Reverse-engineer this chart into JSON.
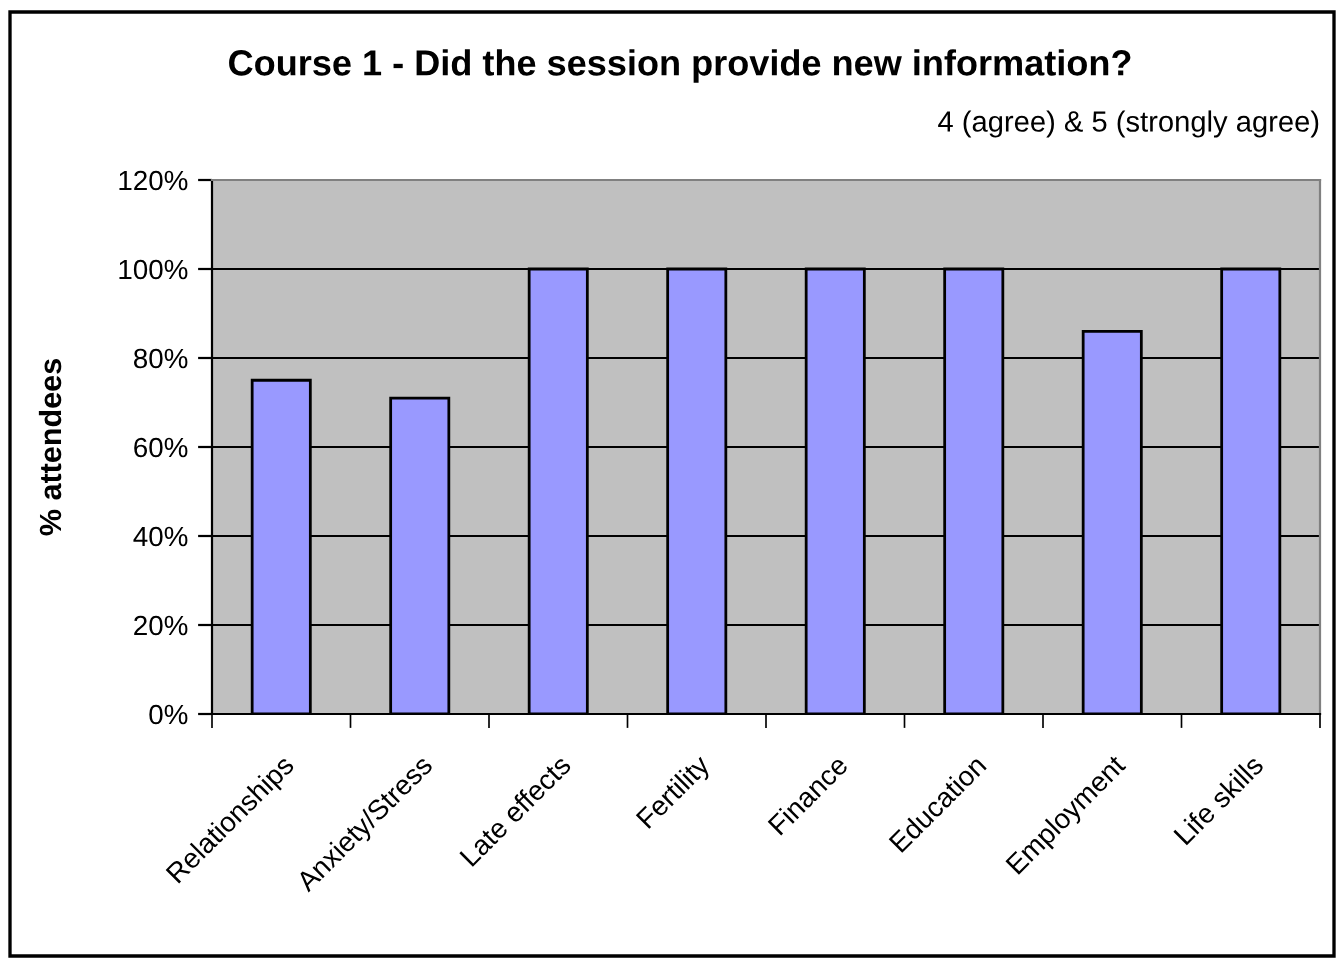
{
  "chart_data": {
    "type": "bar",
    "title": "Course 1 - Did the session provide new information?",
    "subtitle": "4 (agree) & 5 (strongly agree)",
    "ylabel": "% attendees",
    "categories": [
      "Relationships",
      "Anxiety/Stress",
      "Late effects",
      "Fertility",
      "Finance",
      "Education",
      "Employment",
      "Life skills"
    ],
    "values": [
      75,
      71,
      100,
      100,
      100,
      100,
      86,
      100
    ],
    "color": "#9999ff",
    "ylim": [
      0,
      120
    ],
    "yticks": [
      {
        "value": 0,
        "label": "0%"
      },
      {
        "value": 20,
        "label": "20%"
      },
      {
        "value": 40,
        "label": "40%"
      },
      {
        "value": 60,
        "label": "60%"
      },
      {
        "value": 80,
        "label": "80%"
      },
      {
        "value": 100,
        "label": "100%"
      },
      {
        "value": 120,
        "label": "120%"
      }
    ],
    "grid": "y",
    "legend": false
  }
}
